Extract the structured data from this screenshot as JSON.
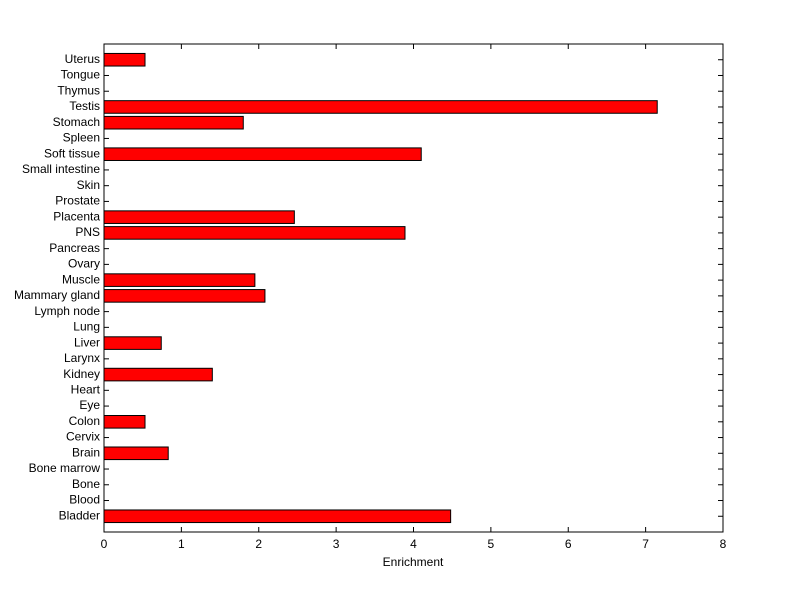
{
  "chart_data": {
    "type": "barh",
    "xlabel": "Enrichment",
    "categories": [
      "Bladder",
      "Blood",
      "Bone",
      "Bone marrow",
      "Brain",
      "Cervix",
      "Colon",
      "Eye",
      "Heart",
      "Kidney",
      "Larynx",
      "Liver",
      "Lung",
      "Lymph node",
      "Mammary gland",
      "Muscle",
      "Ovary",
      "Pancreas",
      "PNS",
      "Placenta",
      "Prostate",
      "Skin",
      "Small intestine",
      "Soft tissue",
      "Spleen",
      "Stomach",
      "Testis",
      "Thymus",
      "Tongue",
      "Uterus"
    ],
    "values": [
      4.48,
      0,
      0,
      0,
      0.83,
      0,
      0.53,
      0,
      0,
      1.4,
      0,
      0.74,
      0,
      0,
      2.08,
      1.95,
      0,
      0,
      3.89,
      2.46,
      0,
      0,
      0,
      4.1,
      0,
      1.8,
      7.15,
      0,
      0,
      0.53
    ],
    "color": "#ff0000",
    "xlim": [
      0,
      8
    ],
    "xticks": [
      0,
      1,
      2,
      3,
      4,
      5,
      6,
      7,
      8
    ]
  }
}
